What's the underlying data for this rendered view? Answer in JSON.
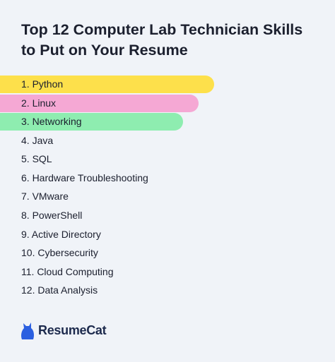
{
  "title": "Top 12 Computer Lab Technician Skills to Put on Your Resume",
  "skills": [
    "1. Python",
    "2. Linux",
    "3. Networking",
    "4. Java",
    "5. SQL",
    "6. Hardware Troubleshooting",
    "7. VMware",
    "8. PowerShell",
    "9. Active Directory",
    "10. Cybersecurity",
    "11. Cloud Computing",
    "12. Data Analysis"
  ],
  "brand": "ResumeCat"
}
